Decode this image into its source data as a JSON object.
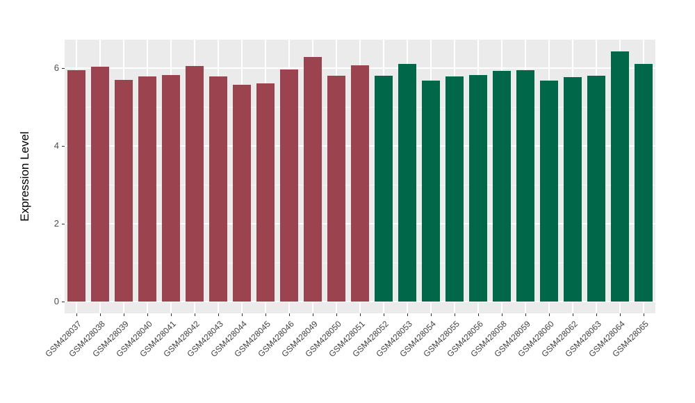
{
  "chart_data": {
    "type": "bar",
    "title": "",
    "xlabel": "",
    "ylabel": "Expression Level",
    "ylim": [
      0,
      6.73
    ],
    "yticks": [
      0,
      2,
      4,
      6
    ],
    "yticks_minor": [
      1,
      3,
      5
    ],
    "grid": true,
    "legend": false,
    "panel_background": "#EBEBEB",
    "gridline_color": "#FFFFFF",
    "categories": [
      "GSM428037",
      "GSM428038",
      "GSM428039",
      "GSM428040",
      "GSM428041",
      "GSM428042",
      "GSM428043",
      "GSM428044",
      "GSM428045",
      "GSM428046",
      "GSM428049",
      "GSM428050",
      "GSM428051",
      "GSM428052",
      "GSM428053",
      "GSM428054",
      "GSM428055",
      "GSM428056",
      "GSM428058",
      "GSM428059",
      "GSM428060",
      "GSM428062",
      "GSM428063",
      "GSM428064",
      "GSM428065"
    ],
    "values": [
      5.95,
      6.04,
      5.7,
      5.79,
      5.83,
      6.05,
      5.79,
      5.57,
      5.61,
      5.96,
      6.29,
      5.8,
      6.07,
      5.81,
      6.1,
      5.68,
      5.79,
      5.83,
      5.92,
      5.95,
      5.68,
      5.76,
      5.81,
      6.42,
      6.11
    ],
    "bar_groups": [
      "maroon",
      "maroon",
      "maroon",
      "maroon",
      "maroon",
      "maroon",
      "maroon",
      "maroon",
      "maroon",
      "maroon",
      "maroon",
      "maroon",
      "maroon",
      "green",
      "green",
      "green",
      "green",
      "green",
      "green",
      "green",
      "green",
      "green",
      "green",
      "green",
      "green"
    ],
    "group_colors": {
      "maroon": "#9B4450",
      "green": "#006849"
    }
  }
}
